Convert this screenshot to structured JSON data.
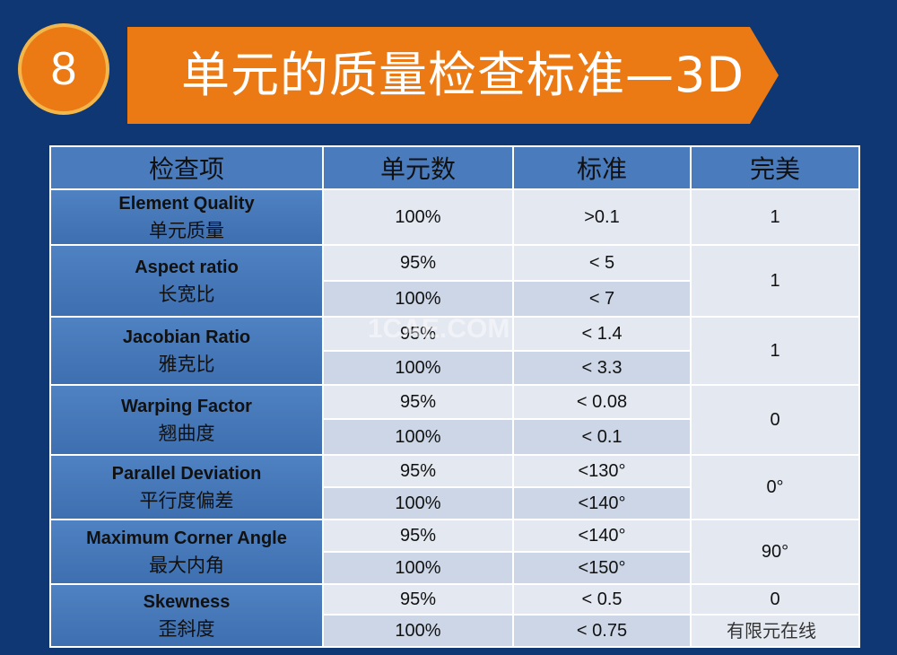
{
  "header": {
    "number": "8",
    "title": "单元的质量检查标准—3D"
  },
  "table": {
    "columns": [
      "检查项",
      "单元数",
      "标准",
      "完美"
    ],
    "rows": [
      {
        "en": "Element Quality",
        "zh": "单元质量",
        "sub": [
          {
            "count": "100%",
            "std": ">0.1"
          }
        ],
        "perfect": "1"
      },
      {
        "en": "Aspect ratio",
        "zh": "长宽比",
        "sub": [
          {
            "count": "95%",
            "std": "< 5"
          },
          {
            "count": "100%",
            "std": "< 7"
          }
        ],
        "perfect": "1"
      },
      {
        "en": "Jacobian Ratio",
        "zh": "雅克比",
        "sub": [
          {
            "count": "95%",
            "std": "< 1.4"
          },
          {
            "count": "100%",
            "std": "< 3.3"
          }
        ],
        "perfect": "1"
      },
      {
        "en": "Warping Factor",
        "zh": "翘曲度",
        "sub": [
          {
            "count": "95%",
            "std": "< 0.08"
          },
          {
            "count": "100%",
            "std": "< 0.1"
          }
        ],
        "perfect": "0"
      },
      {
        "en": "Parallel Deviation",
        "zh": "平行度偏差",
        "sub": [
          {
            "count": "95%",
            "std": "<130°"
          },
          {
            "count": "100%",
            "std": "<140°"
          }
        ],
        "perfect": "0°"
      },
      {
        "en": "Maximum Corner Angle",
        "zh": "最大内角",
        "sub": [
          {
            "count": "95%",
            "std": "<140°"
          },
          {
            "count": "100%",
            "std": "<150°"
          }
        ],
        "perfect": "90°"
      },
      {
        "en": "Skewness",
        "zh": "歪斜度",
        "sub": [
          {
            "count": "95%",
            "std": "< 0.5"
          },
          {
            "count": "100%",
            "std": "< 0.75"
          }
        ],
        "perfect": "0"
      }
    ]
  },
  "watermark": "1CAE.COM",
  "corner_text": "有限元在线"
}
